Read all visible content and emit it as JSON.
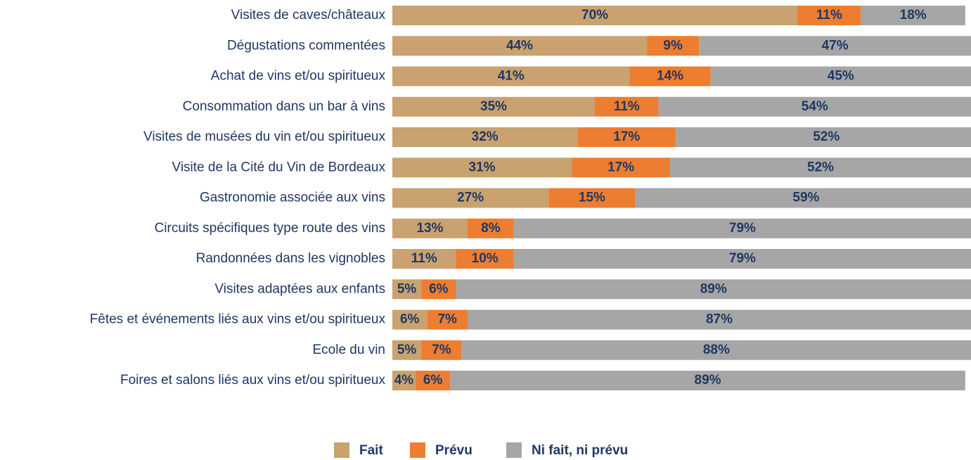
{
  "chart_data": {
    "type": "stacked-bar-horizontal",
    "categories": [
      "Visites de caves/châteaux",
      "Dégustations commentées",
      "Achat de vins et/ou spiritueux",
      "Consommation dans un bar à vins",
      "Visites de musées du vin et/ou spiritueux",
      "Visite de la Cité du Vin de Bordeaux",
      "Gastronomie associée aux vins",
      "Circuits spécifiques type route des vins",
      "Randonnées dans les vignobles",
      "Visites adaptées aux enfants",
      "Fêtes et événements liés aux vins et/ou spiritueux",
      "Ecole du vin",
      "Foires et salons liés aux vins et/ou spiritueux"
    ],
    "series": [
      {
        "name": "Fait",
        "color": "#c9a26f",
        "values": [
          70,
          44,
          41,
          35,
          32,
          31,
          27,
          13,
          11,
          5,
          6,
          5,
          4
        ],
        "value_labels": [
          "70%",
          "44%",
          "41%",
          "35%",
          "32%",
          "31%",
          "27%",
          "13%",
          "11%",
          "5%",
          "6%",
          "5%",
          "4%"
        ]
      },
      {
        "name": "Prévu",
        "color": "#ed7d31",
        "values": [
          11,
          9,
          14,
          11,
          17,
          17,
          15,
          8,
          10,
          6,
          7,
          7,
          6
        ],
        "value_labels": [
          "11%",
          "9%",
          "14%",
          "11%",
          "17%",
          "17%",
          "15%",
          "8%",
          "10%",
          "6%",
          "7%",
          "7%",
          "6%"
        ]
      },
      {
        "name": "Ni fait, ni prévu",
        "color": "#a6a6a6",
        "values": [
          18,
          47,
          45,
          54,
          52,
          52,
          59,
          79,
          79,
          89,
          87,
          88,
          89
        ],
        "value_labels": [
          "18%",
          "47%",
          "45%",
          "54%",
          "52%",
          "52%",
          "59%",
          "79%",
          "79%",
          "89%",
          "87%",
          "88%",
          "89%"
        ]
      }
    ],
    "xlim": [
      0,
      100
    ],
    "legend": "bottom"
  }
}
